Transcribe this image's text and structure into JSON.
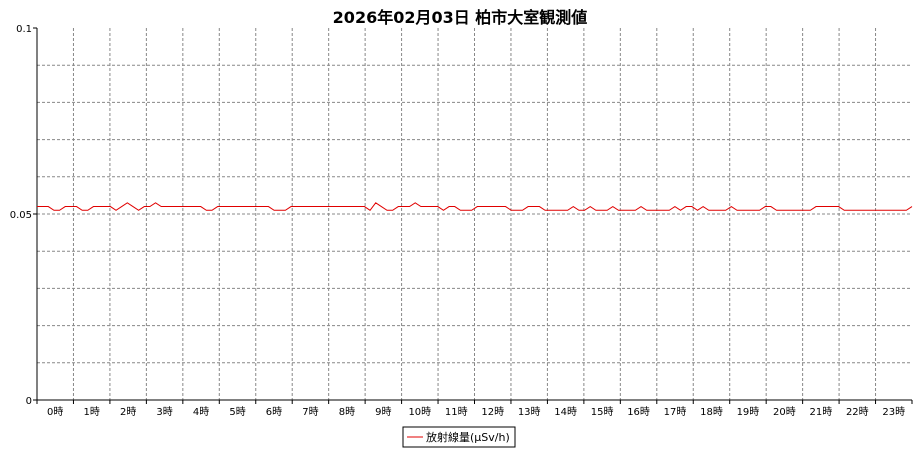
{
  "chart_data": {
    "type": "line",
    "title": "2026年02月03日 柏市大室観測値",
    "xlabel": "",
    "ylabel": "",
    "ylim": [
      0,
      0.1
    ],
    "y_ticks": [
      "0",
      "0.05",
      "0.1"
    ],
    "x_tick_labels": [
      "0時",
      "1時",
      "2時",
      "3時",
      "4時",
      "5時",
      "6時",
      "7時",
      "8時",
      "9時",
      "10時",
      "11時",
      "12時",
      "13時",
      "14時",
      "15時",
      "16時",
      "17時",
      "18時",
      "19時",
      "20時",
      "21時",
      "22時",
      "23時"
    ],
    "grid": true,
    "legend_position": "bottom-center",
    "series": [
      {
        "name": "放射線量(μSv/h)",
        "color": "#e00000",
        "values": [
          0.052,
          0.052,
          0.052,
          0.051,
          0.051,
          0.052,
          0.052,
          0.052,
          0.051,
          0.051,
          0.052,
          0.052,
          0.052,
          0.052,
          0.051,
          0.052,
          0.053,
          0.052,
          0.051,
          0.052,
          0.052,
          0.053,
          0.052,
          0.052,
          0.052,
          0.052,
          0.052,
          0.052,
          0.052,
          0.052,
          0.051,
          0.051,
          0.052,
          0.052,
          0.052,
          0.052,
          0.052,
          0.052,
          0.052,
          0.052,
          0.052,
          0.052,
          0.051,
          0.051,
          0.051,
          0.052,
          0.052,
          0.052,
          0.052,
          0.052,
          0.052,
          0.052,
          0.052,
          0.052,
          0.052,
          0.052,
          0.052,
          0.052,
          0.052,
          0.051,
          0.053,
          0.052,
          0.051,
          0.051,
          0.052,
          0.052,
          0.052,
          0.053,
          0.052,
          0.052,
          0.052,
          0.052,
          0.051,
          0.052,
          0.052,
          0.051,
          0.051,
          0.051,
          0.052,
          0.052,
          0.052,
          0.052,
          0.052,
          0.052,
          0.051,
          0.051,
          0.051,
          0.052,
          0.052,
          0.052,
          0.051,
          0.051,
          0.051,
          0.051,
          0.051,
          0.052,
          0.051,
          0.051,
          0.052,
          0.051,
          0.051,
          0.051,
          0.052,
          0.051,
          0.051,
          0.051,
          0.051,
          0.052,
          0.051,
          0.051,
          0.051,
          0.051,
          0.051,
          0.052,
          0.051,
          0.052,
          0.052,
          0.051,
          0.052,
          0.051,
          0.051,
          0.051,
          0.051,
          0.052,
          0.051,
          0.051,
          0.051,
          0.051,
          0.051,
          0.052,
          0.052,
          0.051,
          0.051,
          0.051,
          0.051,
          0.051,
          0.051,
          0.051,
          0.052,
          0.052,
          0.052,
          0.052,
          0.052,
          0.051,
          0.051,
          0.051,
          0.051,
          0.051,
          0.051,
          0.051,
          0.051,
          0.051,
          0.051,
          0.051,
          0.051,
          0.052
        ]
      }
    ]
  }
}
